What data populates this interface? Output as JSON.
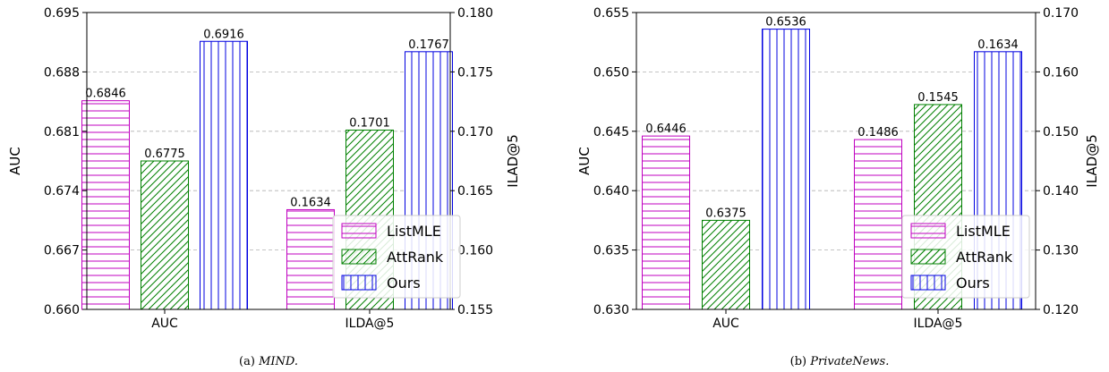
{
  "chart_data": [
    {
      "type": "bar",
      "caption_prefix": "(a)",
      "caption_name": "MIND.",
      "categories": [
        "AUC",
        "ILDA@5"
      ],
      "ylabel_left": "AUC",
      "ylabel_right": "ILAD@5",
      "ylim_left": [
        0.66,
        0.695
      ],
      "ylim_right": [
        0.155,
        0.18
      ],
      "yticks_left": [
        "0.660",
        "0.667",
        "0.674",
        "0.681",
        "0.688",
        "0.695"
      ],
      "yticks_right": [
        "0.155",
        "0.160",
        "0.165",
        "0.170",
        "0.175",
        "0.180"
      ],
      "grid": "horizontal dashed",
      "legend_position": "lower-right",
      "series": [
        {
          "name": "ListMLE",
          "values": [
            0.6846,
            0.1634
          ],
          "labels": [
            "0.6846",
            "0.1634"
          ],
          "color": "#c000c0",
          "hatch": "horizontal"
        },
        {
          "name": "AttRank",
          "values": [
            0.6775,
            0.1701
          ],
          "labels": [
            "0.6775",
            "0.1701"
          ],
          "color": "#008000",
          "hatch": "diagonal"
        },
        {
          "name": "Ours",
          "values": [
            0.6916,
            0.1767
          ],
          "labels": [
            "0.6916",
            "0.1767"
          ],
          "color": "#0000e0",
          "hatch": "vertical"
        }
      ]
    },
    {
      "type": "bar",
      "caption_prefix": "(b)",
      "caption_name": "PrivateNews.",
      "categories": [
        "AUC",
        "ILDA@5"
      ],
      "ylabel_left": "AUC",
      "ylabel_right": "ILAD@5",
      "ylim_left": [
        0.63,
        0.655
      ],
      "ylim_right": [
        0.12,
        0.17
      ],
      "yticks_left": [
        "0.630",
        "0.635",
        "0.640",
        "0.645",
        "0.650",
        "0.655"
      ],
      "yticks_right": [
        "0.120",
        "0.130",
        "0.140",
        "0.150",
        "0.160",
        "0.170"
      ],
      "grid": "horizontal dashed",
      "legend_position": "lower-right",
      "series": [
        {
          "name": "ListMLE",
          "values": [
            0.6446,
            0.1486
          ],
          "labels": [
            "0.6446",
            "0.1486"
          ],
          "color": "#c000c0",
          "hatch": "horizontal"
        },
        {
          "name": "AttRank",
          "values": [
            0.6375,
            0.1545
          ],
          "labels": [
            "0.6375",
            "0.1545"
          ],
          "color": "#008000",
          "hatch": "diagonal"
        },
        {
          "name": "Ours",
          "values": [
            0.6536,
            0.1634
          ],
          "labels": [
            "0.6536",
            "0.1634"
          ],
          "color": "#0000e0",
          "hatch": "vertical"
        }
      ]
    }
  ]
}
